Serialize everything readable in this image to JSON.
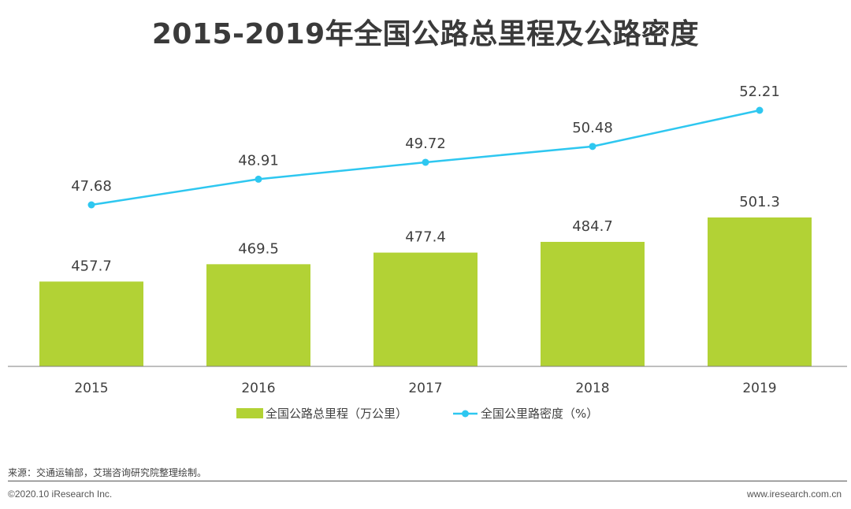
{
  "title": "2015-2019年全国公路总里程及公路密度",
  "source": "来源：交通运输部，艾瑞咨询研究院整理绘制。",
  "copyright": "©2020.10 iResearch Inc.",
  "website": "www.iresearch.com.cn",
  "colors": {
    "bar": "#b2d235",
    "line": "#2ec7f0",
    "text": "#404040",
    "axis": "#7f7f7f"
  },
  "chart_data": {
    "type": "bar",
    "categories": [
      "2015",
      "2016",
      "2017",
      "2018",
      "2019"
    ],
    "series": [
      {
        "name": "全国公路总里程（万公里）",
        "type": "bar",
        "values": [
          457.7,
          469.5,
          477.4,
          484.7,
          501.3
        ]
      },
      {
        "name": "全国公里路密度（%）",
        "type": "line",
        "values": [
          47.68,
          48.91,
          49.72,
          50.48,
          52.21
        ]
      }
    ],
    "legend_position": "bottom",
    "grid": false
  }
}
